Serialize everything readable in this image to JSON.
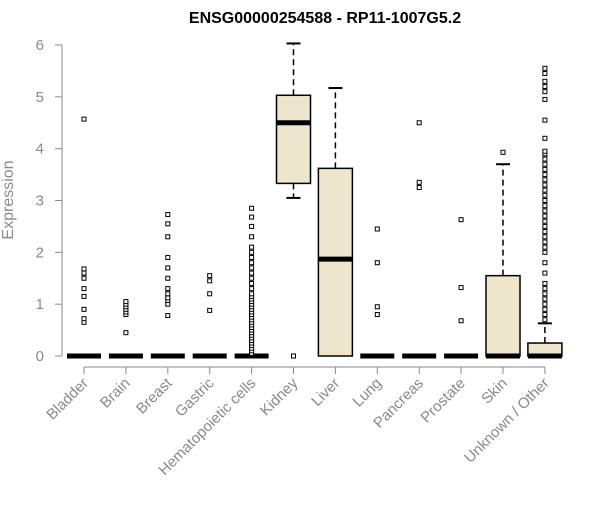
{
  "chart_data": {
    "type": "boxplot",
    "title": "ENSG00000254588 - RP11-1007G5.2",
    "ylabel": "Expression",
    "xlabel": "",
    "ylim": [
      0,
      6
    ],
    "yticks": [
      0,
      1,
      2,
      3,
      4,
      5,
      6
    ],
    "grid": false,
    "box_fill": "#ede6cd",
    "box_stroke": "#000000",
    "axis_color": "#8a8a8a",
    "categories": [
      "Bladder",
      "Brain",
      "Breast",
      "Gastric",
      "Hematopoietic cells",
      "Kidney",
      "Liver",
      "Lung",
      "Pancreas",
      "Prostate",
      "Skin",
      "Unknown / Other"
    ],
    "boxes": [
      {
        "category": "Bladder",
        "min": 0,
        "q1": 0,
        "median": 0,
        "q3": 0,
        "max": 0,
        "outliers": [
          0.65,
          0.72,
          0.9,
          1.15,
          1.3,
          1.5,
          1.6,
          1.68,
          4.57
        ]
      },
      {
        "category": "Brain",
        "min": 0,
        "q1": 0,
        "median": 0,
        "q3": 0,
        "max": 0,
        "outliers": [
          0.45,
          0.8,
          0.85,
          0.9,
          0.95,
          1.0,
          1.05
        ]
      },
      {
        "category": "Breast",
        "min": 0,
        "q1": 0,
        "median": 0,
        "q3": 0,
        "max": 0,
        "outliers": [
          0.78,
          1.0,
          1.07,
          1.12,
          1.2,
          1.3,
          1.5,
          1.7,
          1.9,
          2.3,
          2.55,
          2.73
        ]
      },
      {
        "category": "Gastric",
        "min": 0,
        "q1": 0,
        "median": 0,
        "q3": 0,
        "max": 0,
        "outliers": [
          0.88,
          1.2,
          1.45,
          1.55
        ]
      },
      {
        "category": "Hematopoietic cells",
        "min": 0,
        "q1": 0,
        "median": 0,
        "q3": 0,
        "max": 0,
        "outliers": [
          0.05,
          0.1,
          0.15,
          0.2,
          0.25,
          0.3,
          0.35,
          0.4,
          0.45,
          0.5,
          0.55,
          0.6,
          0.65,
          0.7,
          0.75,
          0.8,
          0.85,
          0.9,
          0.95,
          1.0,
          1.05,
          1.1,
          1.15,
          1.2,
          1.3,
          1.4,
          1.5,
          1.6,
          1.7,
          1.8,
          1.9,
          2.0,
          2.1,
          2.3,
          2.5,
          2.68,
          2.85
        ]
      },
      {
        "category": "Kidney",
        "min": 3.05,
        "q1": 3.33,
        "median": 4.5,
        "q3": 5.03,
        "max": 6.03,
        "outliers": [
          0
        ]
      },
      {
        "category": "Liver",
        "min": 0,
        "q1": 0,
        "median": 1.87,
        "q3": 3.62,
        "max": 5.17,
        "outliers": []
      },
      {
        "category": "Lung",
        "min": 0,
        "q1": 0,
        "median": 0,
        "q3": 0,
        "max": 0,
        "outliers": [
          0.8,
          0.95,
          1.8,
          2.45
        ]
      },
      {
        "category": "Pancreas",
        "min": 0,
        "q1": 0,
        "median": 0,
        "q3": 0,
        "max": 0,
        "outliers": [
          3.25,
          3.35,
          4.5
        ]
      },
      {
        "category": "Prostate",
        "min": 0,
        "q1": 0,
        "median": 0,
        "q3": 0,
        "max": 0,
        "outliers": [
          0.68,
          1.32,
          2.63
        ]
      },
      {
        "category": "Skin",
        "min": 0,
        "q1": 0,
        "median": 0,
        "q3": 1.55,
        "max": 3.7,
        "outliers": [
          3.93
        ]
      },
      {
        "category": "Unknown / Other",
        "min": 0,
        "q1": 0,
        "median": 0,
        "q3": 0.25,
        "max": 0.63,
        "outliers": [
          0.7,
          0.8,
          0.9,
          1.0,
          1.1,
          1.2,
          1.3,
          1.4,
          1.6,
          1.8,
          2.0,
          2.1,
          2.2,
          2.3,
          2.4,
          2.5,
          2.6,
          2.7,
          2.8,
          2.9,
          3.0,
          3.1,
          3.2,
          3.3,
          3.4,
          3.5,
          3.6,
          3.7,
          3.8,
          3.9,
          3.95,
          4.2,
          4.55,
          4.95,
          5.1,
          5.2,
          5.3,
          5.45,
          5.55
        ]
      }
    ]
  }
}
